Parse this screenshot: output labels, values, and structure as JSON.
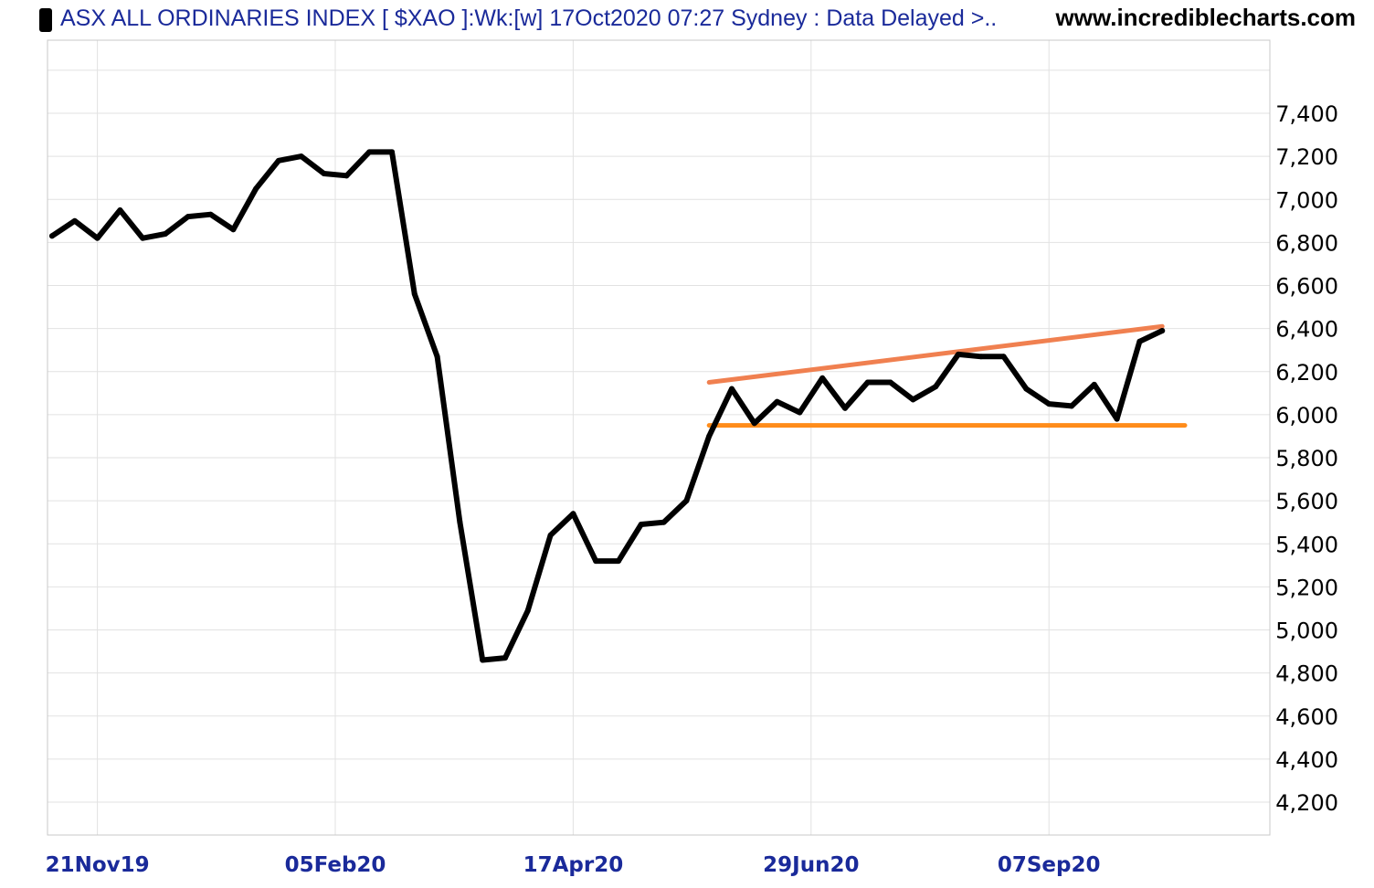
{
  "header": {
    "title": "ASX ALL ORDINARIES INDEX [ $XAO ]:Wk:[w]  17Oct2020 07:27 Sydney : Data Delayed >..",
    "site": "www.incrediblecharts.com"
  },
  "chart_data": {
    "type": "line",
    "title": "ASX ALL ORDINARIES INDEX [ $XAO ]:Wk:[w]  17Oct2020 07:27 Sydney : Data Delayed >..",
    "xlabel": "",
    "ylabel": "",
    "grid": true,
    "line_color": "#000000",
    "x_ticks": [
      "21Nov19",
      "05Feb20",
      "17Apr20",
      "29Jun20",
      "07Sep20"
    ],
    "y_ticks": [
      "4,200",
      "4,400",
      "4,600",
      "4,800",
      "5,000",
      "5,200",
      "5,400",
      "5,600",
      "5,800",
      "6,000",
      "6,200",
      "6,400",
      "6,600",
      "6,800",
      "7,000",
      "7,200",
      "7,400"
    ],
    "ylim": [
      4000,
      7600
    ],
    "series": [
      {
        "values": [
          6830,
          6900,
          6820,
          6950,
          6820,
          6840,
          6920,
          6930,
          6860,
          7050,
          7180,
          7200,
          7120,
          7110,
          7220,
          7220,
          6560,
          6270,
          5500,
          4860,
          4870,
          5090,
          5440,
          5540,
          5320,
          5320,
          5490,
          5500,
          5600,
          5900,
          6120,
          5960,
          6060,
          6010,
          6170,
          6030,
          6150,
          6150,
          6070,
          6130,
          6280,
          6270,
          6270,
          6120,
          6050,
          6040,
          6140,
          5980,
          6340,
          6390
        ]
      }
    ],
    "trendlines": [
      {
        "from": [
          29,
          6150
        ],
        "to": [
          49,
          6410
        ],
        "color": "#f08050"
      },
      {
        "from": [
          29,
          5950
        ],
        "to": [
          50,
          5950
        ],
        "color": "#ff8c1a"
      }
    ]
  }
}
